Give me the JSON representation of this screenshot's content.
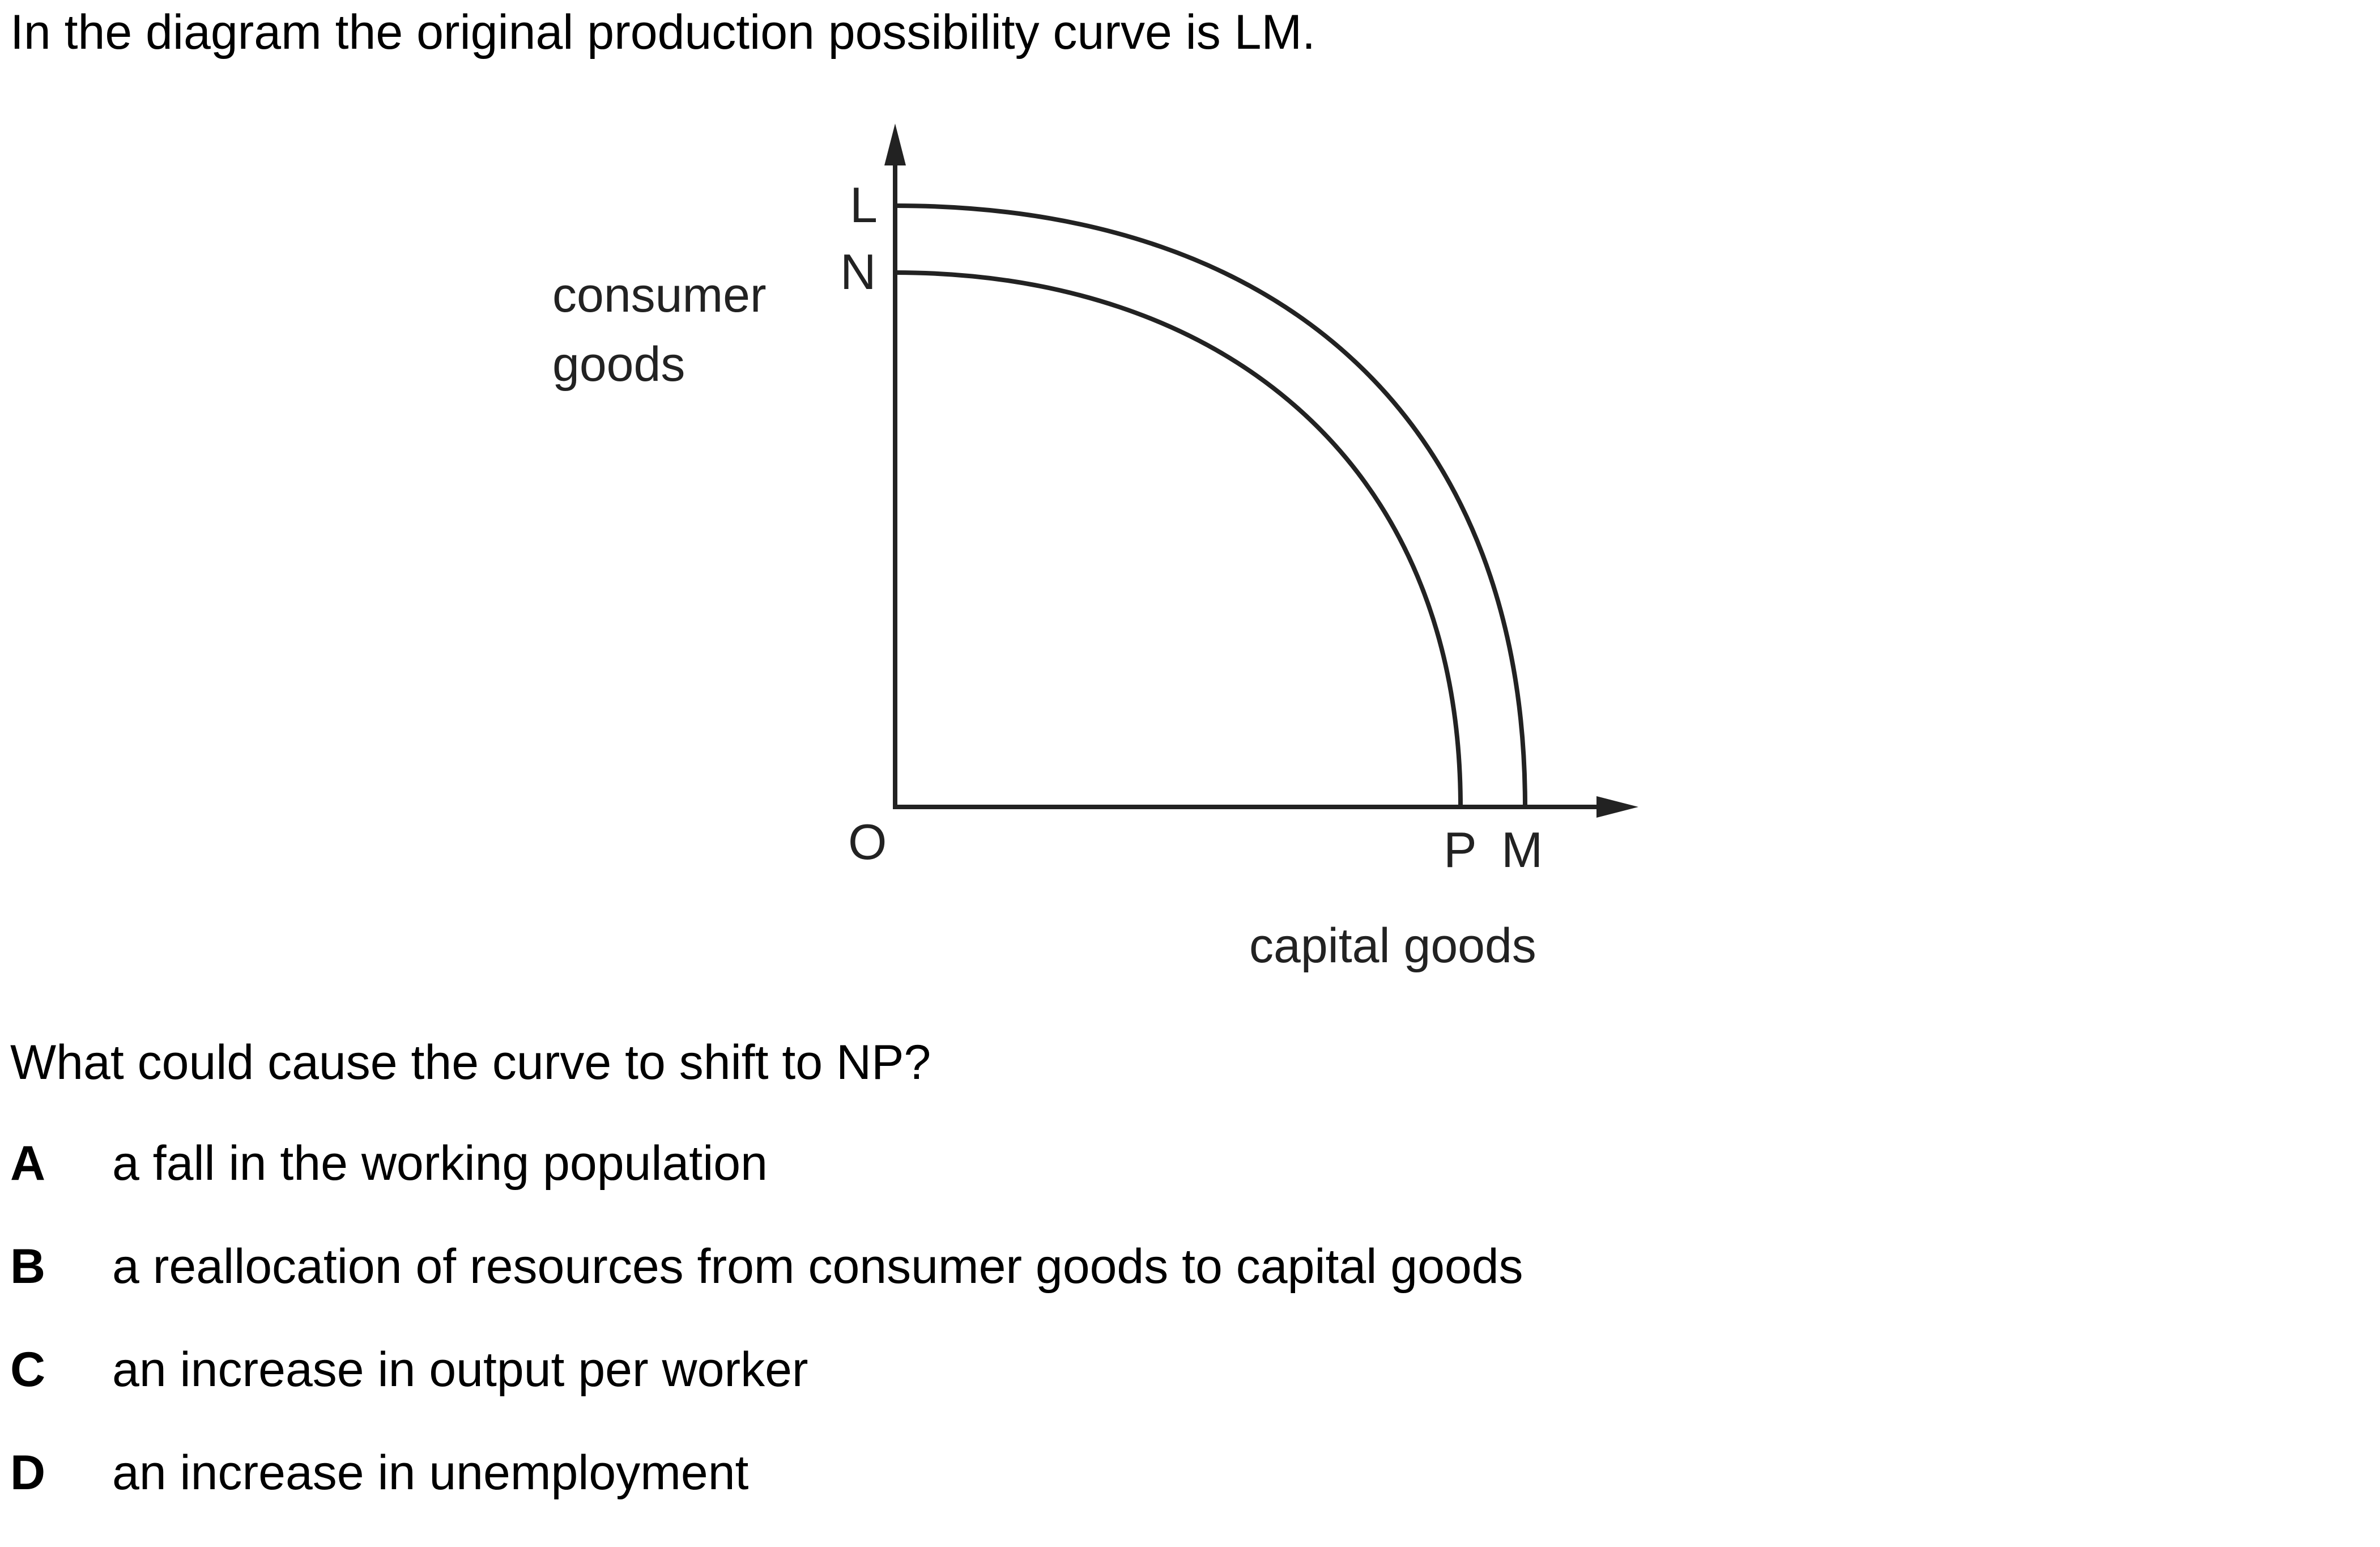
{
  "question": {
    "intro": "In the diagram the original production possibility curve is LM.",
    "prompt": "What could cause the curve to shift to NP?",
    "options": [
      {
        "letter": "A",
        "text": "a fall in the working population"
      },
      {
        "letter": "B",
        "text": "a reallocation of resources from consumer goods to capital goods"
      },
      {
        "letter": "C",
        "text": "an increase in output per worker"
      },
      {
        "letter": "D",
        "text": "an increase in unemployment"
      }
    ]
  },
  "diagram": {
    "y_axis_title_line1": "consumer",
    "y_axis_title_line2": "goods",
    "x_axis_title": "capital goods",
    "origin_label": "O",
    "points": {
      "L": "L",
      "N": "N",
      "P": "P",
      "M": "M"
    }
  }
}
